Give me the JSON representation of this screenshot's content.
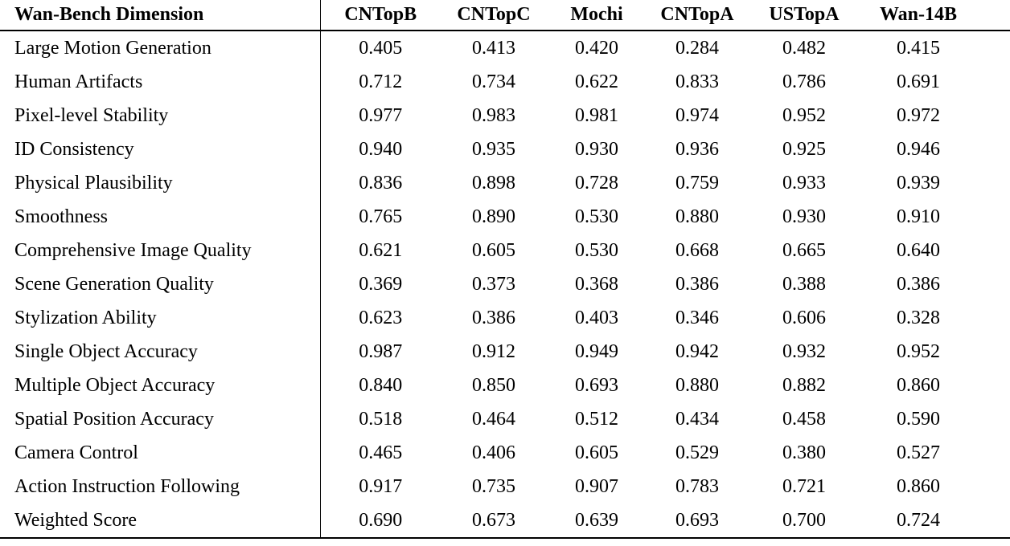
{
  "table": {
    "columns": [
      "Wan-Bench Dimension",
      "CNTopB",
      "CNTopC",
      "Mochi",
      "CNTopA",
      "USTopA",
      "Wan-14B"
    ],
    "rows": [
      {
        "label": "Large Motion Generation",
        "bold_label": false,
        "cells": [
          {
            "value": "0.405",
            "bold": false
          },
          {
            "value": "0.413",
            "bold": false
          },
          {
            "value": "0.420",
            "bold": true
          },
          {
            "value": "0.284",
            "bold": false
          },
          {
            "value": "0.482",
            "bold": true
          },
          {
            "value": "0.415",
            "bold": false
          }
        ]
      },
      {
        "label": "Human Artifacts",
        "bold_label": false,
        "cells": [
          {
            "value": "0.712",
            "bold": false
          },
          {
            "value": "0.734",
            "bold": false
          },
          {
            "value": "0.622",
            "bold": false
          },
          {
            "value": "0.833",
            "bold": true
          },
          {
            "value": "0.786",
            "bold": true
          },
          {
            "value": "0.691",
            "bold": false
          }
        ]
      },
      {
        "label": "Pixel-level Stability",
        "bold_label": false,
        "cells": [
          {
            "value": "0.977",
            "bold": false
          },
          {
            "value": "0.983",
            "bold": true
          },
          {
            "value": "0.981",
            "bold": true
          },
          {
            "value": "0.974",
            "bold": false
          },
          {
            "value": "0.952",
            "bold": false
          },
          {
            "value": "0.972",
            "bold": false
          }
        ]
      },
      {
        "label": "ID Consistency",
        "bold_label": false,
        "cells": [
          {
            "value": "0.940",
            "bold": false
          },
          {
            "value": "0.935",
            "bold": false
          },
          {
            "value": "0.930",
            "bold": false
          },
          {
            "value": "0.936",
            "bold": true
          },
          {
            "value": "0.925",
            "bold": false
          },
          {
            "value": "0.946",
            "bold": true
          }
        ]
      },
      {
        "label": "Physical Plausibility",
        "bold_label": false,
        "cells": [
          {
            "value": "0.836",
            "bold": false
          },
          {
            "value": "0.898",
            "bold": false
          },
          {
            "value": "0.728",
            "bold": false
          },
          {
            "value": "0.759",
            "bold": false
          },
          {
            "value": "0.933",
            "bold": true
          },
          {
            "value": "0.939",
            "bold": true
          }
        ]
      },
      {
        "label": "Smoothness",
        "bold_label": false,
        "cells": [
          {
            "value": "0.765",
            "bold": false
          },
          {
            "value": "0.890",
            "bold": true
          },
          {
            "value": "0.530",
            "bold": false
          },
          {
            "value": "0.880",
            "bold": false
          },
          {
            "value": "0.930",
            "bold": true
          },
          {
            "value": "0.910",
            "bold": false
          }
        ]
      },
      {
        "label": "Comprehensive Image Quality",
        "bold_label": false,
        "cells": [
          {
            "value": "0.621",
            "bold": false
          },
          {
            "value": "0.605",
            "bold": false
          },
          {
            "value": "0.530",
            "bold": false
          },
          {
            "value": "0.668",
            "bold": true
          },
          {
            "value": "0.665",
            "bold": true
          },
          {
            "value": "0.640",
            "bold": false
          }
        ]
      },
      {
        "label": "Scene Generation Quality",
        "bold_label": false,
        "cells": [
          {
            "value": "0.369",
            "bold": false
          },
          {
            "value": "0.373",
            "bold": false
          },
          {
            "value": "0.368",
            "bold": false
          },
          {
            "value": "0.386",
            "bold": false
          },
          {
            "value": "0.388",
            "bold": true
          },
          {
            "value": "0.386",
            "bold": true
          }
        ]
      },
      {
        "label": "Stylization Ability",
        "bold_label": false,
        "cells": [
          {
            "value": "0.623",
            "bold": true
          },
          {
            "value": "0.386",
            "bold": false
          },
          {
            "value": "0.403",
            "bold": false
          },
          {
            "value": "0.346",
            "bold": false
          },
          {
            "value": "0.606",
            "bold": true
          },
          {
            "value": "0.328",
            "bold": false
          }
        ]
      },
      {
        "label": "Single Object Accuracy",
        "bold_label": false,
        "cells": [
          {
            "value": "0.987",
            "bold": true
          },
          {
            "value": "0.912",
            "bold": false
          },
          {
            "value": "0.949",
            "bold": false
          },
          {
            "value": "0.942",
            "bold": false
          },
          {
            "value": "0.932",
            "bold": false
          },
          {
            "value": "0.952",
            "bold": true
          }
        ]
      },
      {
        "label": "Multiple Object Accuracy",
        "bold_label": false,
        "cells": [
          {
            "value": "0.840",
            "bold": false
          },
          {
            "value": "0.850",
            "bold": false
          },
          {
            "value": "0.693",
            "bold": false
          },
          {
            "value": "0.880",
            "bold": true
          },
          {
            "value": "0.882",
            "bold": true
          },
          {
            "value": "0.860",
            "bold": false
          }
        ]
      },
      {
        "label": "Spatial Position Accuracy",
        "bold_label": false,
        "cells": [
          {
            "value": "0.518",
            "bold": true
          },
          {
            "value": "0.464",
            "bold": false
          },
          {
            "value": "0.512",
            "bold": false
          },
          {
            "value": "0.434",
            "bold": false
          },
          {
            "value": "0.458",
            "bold": false
          },
          {
            "value": "0.590",
            "bold": true
          }
        ]
      },
      {
        "label": "Camera Control",
        "bold_label": false,
        "cells": [
          {
            "value": "0.465",
            "bold": false
          },
          {
            "value": "0.406",
            "bold": false
          },
          {
            "value": "0.605",
            "bold": true
          },
          {
            "value": "0.529",
            "bold": true
          },
          {
            "value": "0.380",
            "bold": false
          },
          {
            "value": "0.527",
            "bold": false
          }
        ]
      },
      {
        "label": "Action Instruction Following",
        "bold_label": false,
        "cells": [
          {
            "value": "0.917",
            "bold": true
          },
          {
            "value": "0.735",
            "bold": false
          },
          {
            "value": "0.907",
            "bold": true
          },
          {
            "value": "0.783",
            "bold": false
          },
          {
            "value": "0.721",
            "bold": false
          },
          {
            "value": "0.860",
            "bold": false
          }
        ]
      },
      {
        "label": "Weighted Score",
        "bold_label": true,
        "cells": [
          {
            "value": "0.690",
            "bold": false
          },
          {
            "value": "0.673",
            "bold": false
          },
          {
            "value": "0.639",
            "bold": false
          },
          {
            "value": "0.693",
            "bold": false
          },
          {
            "value": "0.700",
            "bold": true
          },
          {
            "value": "0.724",
            "bold": true
          }
        ]
      }
    ],
    "colors": {
      "text": "#000000",
      "background": "#ffffff",
      "rule": "#000000"
    }
  }
}
